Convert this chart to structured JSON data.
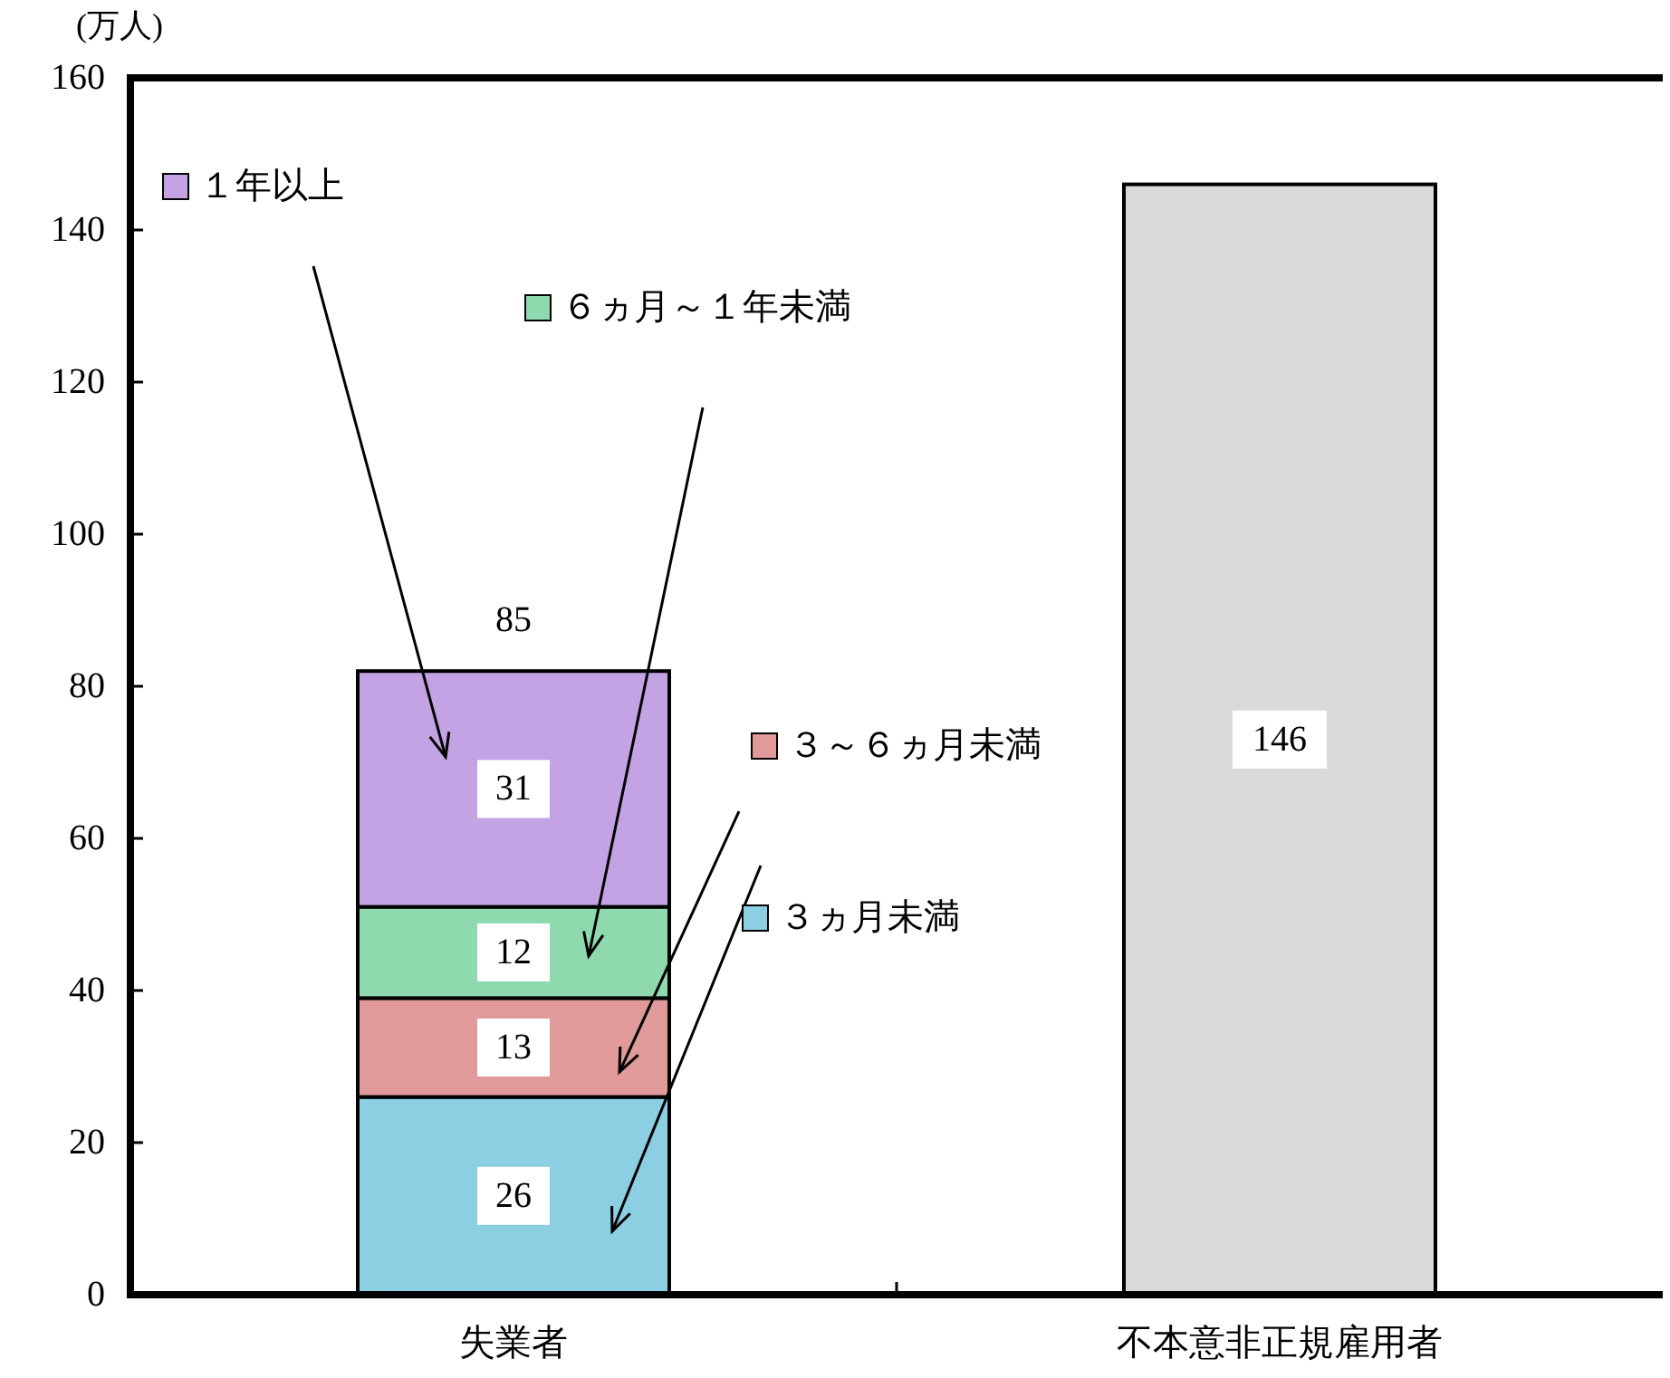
{
  "chart_data": {
    "type": "bar",
    "stacked": true,
    "ylabel": "(万人)",
    "categories": [
      "失業者",
      "不本意非正規雇用者"
    ],
    "series": [
      {
        "name": "３ヵ月未満",
        "color": "#8ccfe3",
        "values": [
          26,
          null
        ]
      },
      {
        "name": "３～６ヵ月未満",
        "color": "#e09a9a",
        "values": [
          13,
          null
        ]
      },
      {
        "name": "６ヵ月～１年未満",
        "color": "#8fd9ae",
        "values": [
          12,
          null
        ]
      },
      {
        "name": "１年以上",
        "color": "#c3a3e3",
        "values": [
          31,
          null
        ]
      },
      {
        "color": "#d9d9d9",
        "values": [
          null,
          146
        ]
      }
    ],
    "totals": [
      "85",
      null
    ],
    "data_labels": true,
    "ylim": [
      0,
      160
    ],
    "yticks": [
      0,
      20,
      40,
      60,
      80,
      100,
      120,
      140,
      160
    ],
    "grid": false,
    "legend": "top left"
  }
}
